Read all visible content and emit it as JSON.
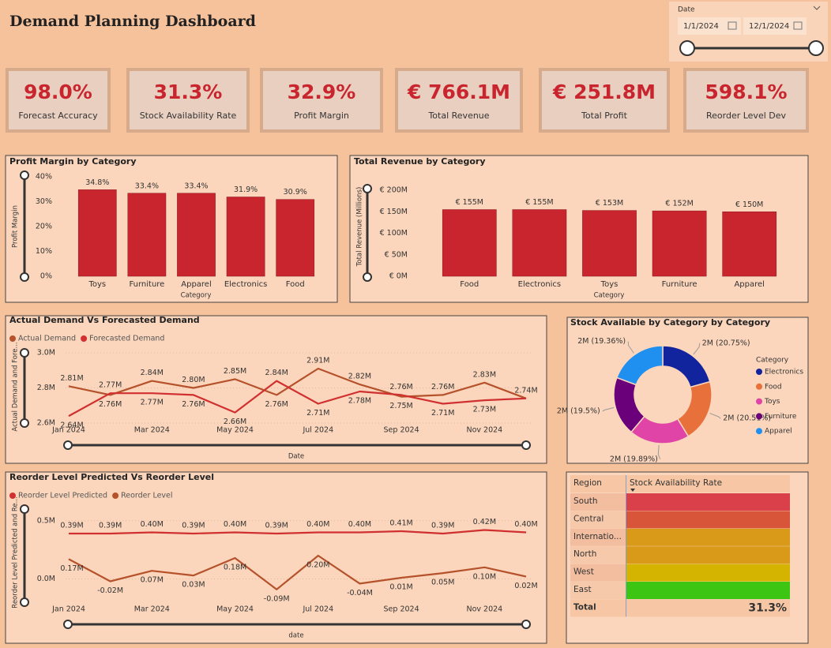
{
  "header": {
    "title": "Demand Planning Dashboard"
  },
  "date_filter": {
    "label": "Date",
    "start": "1/1/2024",
    "end": "12/1/2024"
  },
  "kpis": [
    {
      "value": "98.0%",
      "label": "Forecast Accuracy"
    },
    {
      "value": "31.3%",
      "label": "Stock Availability Rate"
    },
    {
      "value": "32.9%",
      "label": "Profit Margin"
    },
    {
      "value": "€ 766.1M",
      "label": "Total Revenue"
    },
    {
      "value": "€ 251.8M",
      "label": "Total Profit"
    },
    {
      "value": "598.1%",
      "label": "Reorder Level Dev"
    }
  ],
  "chart_data": [
    {
      "type": "bar",
      "title": "Profit Margin by Category",
      "x_label": "Category",
      "y_label": "Profit Margin",
      "color": "#c9252f",
      "grid": false,
      "categories": [
        "Toys",
        "Furniture",
        "Apparel",
        "Electronics",
        "Food"
      ],
      "values": [
        34.8,
        33.4,
        33.4,
        31.9,
        30.9
      ],
      "value_labels": [
        "34.8%",
        "33.4%",
        "33.4%",
        "31.9%",
        "30.9%"
      ],
      "ylim": [
        0,
        40
      ],
      "yticks": [
        {
          "value": 0,
          "label": "0%"
        },
        {
          "value": 10,
          "label": "10%"
        },
        {
          "value": 20,
          "label": "20%"
        },
        {
          "value": 30,
          "label": "30%"
        },
        {
          "value": 40,
          "label": "40%"
        }
      ]
    },
    {
      "type": "bar",
      "title": "Total Revenue by Category",
      "x_label": "Category",
      "y_label": "Total Revenue (Millions)",
      "color": "#c9252f",
      "grid": false,
      "categories": [
        "Food",
        "Electronics",
        "Toys",
        "Furniture",
        "Apparel"
      ],
      "values": [
        155,
        155,
        153,
        152,
        150
      ],
      "value_labels": [
        "€ 155M",
        "€ 155M",
        "€ 153M",
        "€ 152M",
        "€ 150M"
      ],
      "ylim": [
        0,
        200
      ],
      "yticks": [
        {
          "value": 0,
          "label": "€ 0M"
        },
        {
          "value": 50,
          "label": "€ 50M"
        },
        {
          "value": 100,
          "label": "€ 100M"
        },
        {
          "value": 150,
          "label": "€ 150M"
        },
        {
          "value": 200,
          "label": "€ 200M"
        }
      ]
    },
    {
      "type": "line",
      "title": "Actual Demand Vs Forecasted Demand",
      "x_label": "Date",
      "y_label": "Actual Demand and Fore...",
      "grid": true,
      "categories": [
        "Jan 2024",
        null,
        "Mar 2024",
        null,
        "May 2024",
        null,
        "Jul 2024",
        null,
        "Sep 2024",
        null,
        "Nov 2024",
        null
      ],
      "series": [
        {
          "name": "Actual Demand",
          "color": "#b5522b",
          "values": [
            2.81,
            2.76,
            2.84,
            2.8,
            2.85,
            2.76,
            2.91,
            2.82,
            2.75,
            2.76,
            2.83,
            2.74
          ],
          "value_labels": [
            "2.81M",
            "2.76M",
            "2.84M",
            "2.80M",
            "2.85M",
            "2.76M",
            "2.91M",
            "2.82M",
            "2.75M",
            "2.76M",
            "2.83M",
            "2.74M"
          ]
        },
        {
          "name": "Forecasted Demand",
          "color": "#d0302f",
          "values": [
            2.64,
            2.77,
            2.77,
            2.76,
            2.66,
            2.84,
            2.71,
            2.78,
            2.76,
            2.71,
            2.73,
            2.74
          ],
          "value_labels": [
            "2.64M",
            "2.77M",
            "2.77M",
            "2.76M",
            "2.66M",
            "2.84M",
            "2.71M",
            "2.78M",
            "2.76M",
            "2.71M",
            "2.73M",
            null
          ]
        }
      ],
      "ylim": [
        2.6,
        3.0
      ],
      "yticks": [
        {
          "value": 2.6,
          "label": "2.6M"
        },
        {
          "value": 2.8,
          "label": "2.8M"
        },
        {
          "value": 3.0,
          "label": "3.0M"
        }
      ]
    },
    {
      "type": "line",
      "title": "Reorder Level Predicted Vs Reorder Level",
      "x_label": "date",
      "y_label": "Reorder Level Predicted and Re...",
      "grid": true,
      "categories": [
        "Jan 2024",
        null,
        "Mar 2024",
        null,
        "May 2024",
        null,
        "Jul 2024",
        null,
        "Sep 2024",
        null,
        "Nov 2024",
        null
      ],
      "series": [
        {
          "name": "Reorder Level Predicted",
          "color": "#d0302f",
          "values": [
            0.39,
            0.39,
            0.4,
            0.39,
            0.4,
            0.39,
            0.4,
            0.4,
            0.41,
            0.39,
            0.42,
            0.4
          ],
          "value_labels": [
            "0.39M",
            "0.39M",
            "0.40M",
            "0.39M",
            "0.40M",
            "0.39M",
            "0.40M",
            "0.40M",
            "0.41M",
            "0.39M",
            "0.42M",
            "0.40M"
          ]
        },
        {
          "name": "Reorder Level",
          "color": "#b5522b",
          "values": [
            0.17,
            -0.02,
            0.07,
            0.03,
            0.18,
            -0.09,
            0.2,
            -0.04,
            0.01,
            0.05,
            0.1,
            0.02
          ],
          "value_labels": [
            "0.17M",
            "-0.02M",
            "0.07M",
            "0.03M",
            "0.18M",
            "-0.09M",
            "0.20M",
            "-0.04M",
            "0.01M",
            "0.05M",
            "0.10M",
            "0.02M"
          ]
        }
      ],
      "ylim": [
        -0.2,
        0.6
      ],
      "yticks": [
        {
          "value": 0,
          "label": "0.0M"
        },
        {
          "value": 0.5,
          "label": "0.5M"
        }
      ]
    },
    {
      "type": "donut",
      "title": "Stock Available by Category by Category",
      "legend_title": "Category",
      "categories": [
        "Electronics",
        "Food",
        "Toys",
        "Furniture",
        "Apparel"
      ],
      "colors": [
        "#12239e",
        "#e8703a",
        "#e044a7",
        "#6b007b",
        "#1f8ff0"
      ],
      "values": [
        20.75,
        20.51,
        19.89,
        19.5,
        19.36
      ],
      "value_labels": [
        "2M (20.75%)",
        "2M (20.51%)",
        "2M (19.89%)",
        "2M (19.5%)",
        "2M (19.36%)"
      ]
    }
  ],
  "table": {
    "columns": [
      "Region",
      "Stock Availability Rate"
    ],
    "rows": [
      {
        "region": "South",
        "color": "#d9404a"
      },
      {
        "region": "Central",
        "color": "#d9553a"
      },
      {
        "region": "Internatio...",
        "color": "#d99a1a"
      },
      {
        "region": "North",
        "color": "#d99a1a"
      },
      {
        "region": "West",
        "color": "#d4b400"
      },
      {
        "region": "East",
        "color": "#3cc613"
      }
    ],
    "total": {
      "label": "Total",
      "value": "31.3%"
    }
  }
}
